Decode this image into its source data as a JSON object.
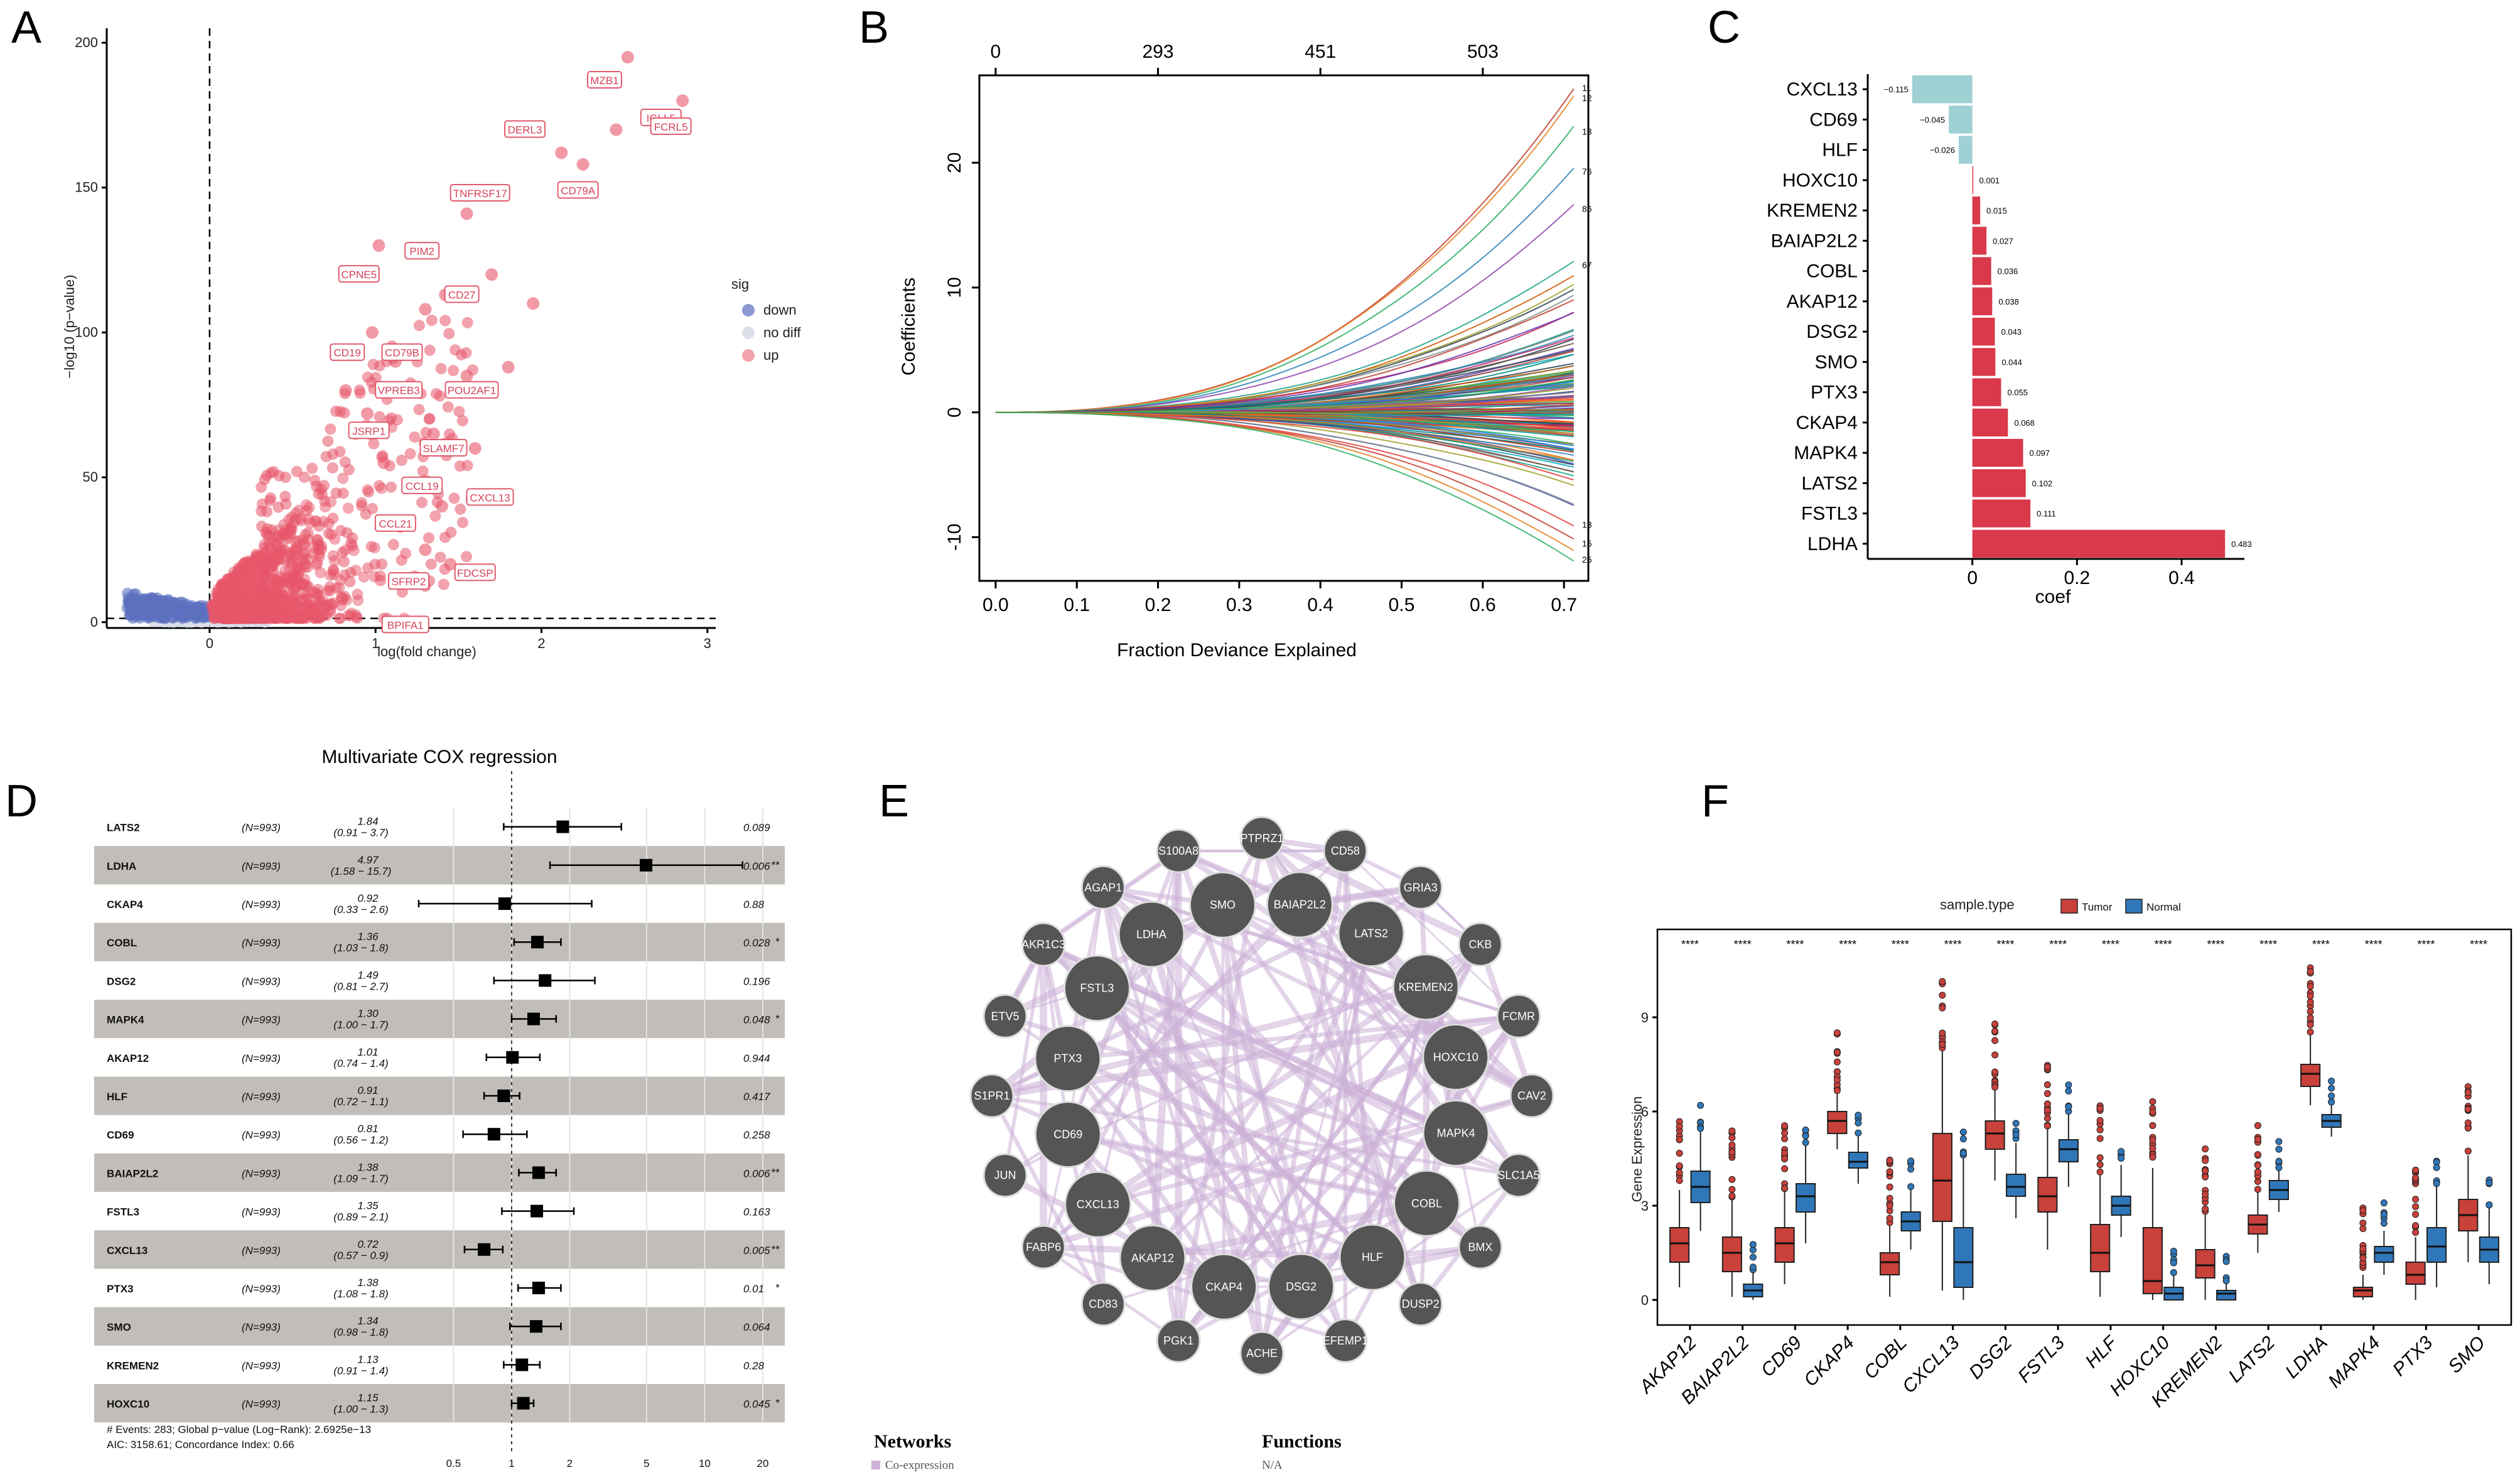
{
  "panels": {
    "A": "A",
    "B": "B",
    "C": "C",
    "D": "D",
    "E": "E",
    "F": "F"
  },
  "colors": {
    "down": "#5b6fbf",
    "nodiff": "#d8dde8",
    "up": "#e8566a",
    "coef_neg": "#9fd0d4",
    "coef_pos": "#d9394a",
    "tumor": "#c8413a",
    "normal": "#2f77b8",
    "net_edge": "#cdb2d8",
    "node_fill": "#555555"
  },
  "chart_data": [
    {
      "panel": "A",
      "type": "scatter",
      "title": "",
      "xlabel": "log(fold change)",
      "ylabel": "−log10 (p−value)",
      "xlim": [
        -0.62,
        3.05
      ],
      "ylim": [
        -2,
        205
      ],
      "xticks": [
        0,
        1,
        2,
        3
      ],
      "yticks": [
        0,
        50,
        100,
        150,
        200
      ],
      "legend": {
        "title": "sig",
        "items": [
          {
            "label": "down",
            "color": "#5b6fbf"
          },
          {
            "label": "no diff",
            "color": "#d8dde8"
          },
          {
            "label": "up",
            "color": "#e8566a"
          }
        ]
      },
      "highlight_points": [
        [
          2.52,
          195
        ],
        [
          2.85,
          180
        ],
        [
          2.78,
          175
        ],
        [
          2.45,
          170
        ],
        [
          2.25,
          158
        ],
        [
          1.55,
          141
        ],
        [
          2.12,
          162
        ],
        [
          1.02,
          130
        ],
        [
          1.42,
          113
        ],
        [
          0.98,
          100
        ],
        [
          1.3,
          108
        ],
        [
          1.95,
          110
        ],
        [
          1.12,
          90
        ],
        [
          1.7,
          120
        ],
        [
          0.82,
          80
        ],
        [
          1.55,
          85
        ],
        [
          0.95,
          72
        ],
        [
          1.35,
          65
        ],
        [
          1.05,
          55
        ],
        [
          1.4,
          40
        ],
        [
          1.15,
          33
        ],
        [
          1.45,
          20
        ],
        [
          0.8,
          8
        ],
        [
          1.3,
          25
        ],
        [
          1.8,
          88
        ],
        [
          1.6,
          60
        ]
      ],
      "labels": [
        {
          "text": "MZB1",
          "x": 2.38,
          "y": 187
        },
        {
          "text": "IGLL5",
          "x": 2.72,
          "y": 174
        },
        {
          "text": "FCRL5",
          "x": 2.78,
          "y": 171
        },
        {
          "text": "DERL3",
          "x": 1.9,
          "y": 170
        },
        {
          "text": "CD79A",
          "x": 2.22,
          "y": 149
        },
        {
          "text": "TNFRSF17",
          "x": 1.63,
          "y": 148
        },
        {
          "text": "PIM2",
          "x": 1.28,
          "y": 128
        },
        {
          "text": "CPNE5",
          "x": 0.9,
          "y": 120
        },
        {
          "text": "CD27",
          "x": 1.52,
          "y": 113
        },
        {
          "text": "CD19",
          "x": 0.83,
          "y": 93
        },
        {
          "text": "CD79B",
          "x": 1.16,
          "y": 93
        },
        {
          "text": "VPREB3",
          "x": 1.14,
          "y": 80
        },
        {
          "text": "POU2AF1",
          "x": 1.58,
          "y": 80
        },
        {
          "text": "JSRP1",
          "x": 0.96,
          "y": 66
        },
        {
          "text": "SLAMF7",
          "x": 1.41,
          "y": 60
        },
        {
          "text": "CCL19",
          "x": 1.28,
          "y": 47
        },
        {
          "text": "CXCL13",
          "x": 1.69,
          "y": 43
        },
        {
          "text": "CCL21",
          "x": 1.12,
          "y": 34
        },
        {
          "text": "FDCSP",
          "x": 1.6,
          "y": 17
        },
        {
          "text": "SFRP2",
          "x": 1.2,
          "y": 14
        },
        {
          "text": "BPIFA1",
          "x": 1.18,
          "y": -1
        }
      ]
    },
    {
      "panel": "B",
      "type": "line",
      "title": "",
      "xlabel": "Fraction Deviance Explained",
      "ylabel": "Coefficients",
      "xlim": [
        -0.02,
        0.73
      ],
      "ylim": [
        -13.5,
        27
      ],
      "xticks": [
        0.0,
        0.1,
        0.2,
        0.3,
        0.4,
        0.5,
        0.6,
        0.7
      ],
      "xtick_labels": [
        "0.0",
        "0.1",
        "0.2",
        "0.3",
        "0.4",
        "0.5",
        "0.6",
        "0.7"
      ],
      "yticks": [
        -10,
        0,
        10,
        20
      ],
      "top_axis_values": [
        0,
        0.2,
        0.4,
        0.6
      ],
      "top_axis_labels": [
        "0",
        "293",
        "451",
        "503"
      ],
      "series_end_values": [
        26,
        25.5,
        23,
        19.5,
        16.5,
        12,
        11,
        10,
        9.5,
        8,
        6.5,
        5,
        3,
        1,
        -1,
        -3,
        -4.5,
        -6,
        -7.5,
        -9,
        -10,
        -11,
        -12
      ],
      "right_labels": [
        "11",
        "12",
        "13",
        "76",
        "86",
        "67",
        "13",
        "15",
        "25"
      ]
    },
    {
      "panel": "C",
      "type": "bar",
      "orientation": "horizontal",
      "xlabel": "coef",
      "xlim": [
        -0.2,
        0.52
      ],
      "xticks": [
        0,
        0.2,
        0.4
      ],
      "xtick_labels": [
        "0",
        "0.2",
        "0.4"
      ],
      "categories": [
        "CXCL13",
        "CD69",
        "HLF",
        "HOXC10",
        "KREMEN2",
        "BAIAP2L2",
        "COBL",
        "AKAP12",
        "DSG2",
        "SMO",
        "PTX3",
        "CKAP4",
        "MAPK4",
        "LATS2",
        "FSTL3",
        "LDHA"
      ],
      "values": [
        -0.115,
        -0.045,
        -0.026,
        0.001,
        0.015,
        0.027,
        0.036,
        0.038,
        0.043,
        0.044,
        0.055,
        0.068,
        0.097,
        0.102,
        0.111,
        0.483
      ],
      "value_labels": [
        "−0.115",
        "−0.045",
        "−0.026",
        "0.001",
        "0.015",
        "0.027",
        "0.036",
        "0.038",
        "0.043",
        "0.044",
        "0.055",
        "0.068",
        "0.097",
        "0.102",
        "0.111",
        "0.483"
      ]
    },
    {
      "panel": "D",
      "type": "forest",
      "title": "Multivariate COX regression",
      "xscale": "log",
      "xlim": [
        0.28,
        26
      ],
      "xticks": [
        0.5,
        1,
        2,
        5,
        10,
        20
      ],
      "xtick_labels": [
        "0.5",
        "1",
        "2",
        "5",
        "10",
        "20"
      ],
      "rows": [
        {
          "gene": "LATS2",
          "n": "(N=993)",
          "hr": 1.84,
          "lo": 0.91,
          "hi": 3.7,
          "hr_text": "1.84",
          "ci_text": "(0.91 − 3.7)",
          "p": "0.089",
          "stars": ""
        },
        {
          "gene": "LDHA",
          "n": "(N=993)",
          "hr": 4.97,
          "lo": 1.58,
          "hi": 15.7,
          "hr_text": "4.97",
          "ci_text": "(1.58 − 15.7)",
          "p": "0.006",
          "stars": "**"
        },
        {
          "gene": "CKAP4",
          "n": "(N=993)",
          "hr": 0.92,
          "lo": 0.33,
          "hi": 2.6,
          "hr_text": "0.92",
          "ci_text": "(0.33 − 2.6)",
          "p": "0.88",
          "stars": ""
        },
        {
          "gene": "COBL",
          "n": "(N=993)",
          "hr": 1.36,
          "lo": 1.03,
          "hi": 1.8,
          "hr_text": "1.36",
          "ci_text": "(1.03 − 1.8)",
          "p": "0.028",
          "stars": "*"
        },
        {
          "gene": "DSG2",
          "n": "(N=993)",
          "hr": 1.49,
          "lo": 0.81,
          "hi": 2.7,
          "hr_text": "1.49",
          "ci_text": "(0.81 − 2.7)",
          "p": "0.196",
          "stars": ""
        },
        {
          "gene": "MAPK4",
          "n": "(N=993)",
          "hr": 1.3,
          "lo": 1.0,
          "hi": 1.7,
          "hr_text": "1.30",
          "ci_text": "(1.00 − 1.7)",
          "p": "0.048",
          "stars": "*"
        },
        {
          "gene": "AKAP12",
          "n": "(N=993)",
          "hr": 1.01,
          "lo": 0.74,
          "hi": 1.4,
          "hr_text": "1.01",
          "ci_text": "(0.74 − 1.4)",
          "p": "0.944",
          "stars": ""
        },
        {
          "gene": "HLF",
          "n": "(N=993)",
          "hr": 0.91,
          "lo": 0.72,
          "hi": 1.1,
          "hr_text": "0.91",
          "ci_text": "(0.72 − 1.1)",
          "p": "0.417",
          "stars": ""
        },
        {
          "gene": "CD69",
          "n": "(N=993)",
          "hr": 0.81,
          "lo": 0.56,
          "hi": 1.2,
          "hr_text": "0.81",
          "ci_text": "(0.56 − 1.2)",
          "p": "0.258",
          "stars": ""
        },
        {
          "gene": "BAIAP2L2",
          "n": "(N=993)",
          "hr": 1.38,
          "lo": 1.09,
          "hi": 1.7,
          "hr_text": "1.38",
          "ci_text": "(1.09 − 1.7)",
          "p": "0.006",
          "stars": "**"
        },
        {
          "gene": "FSTL3",
          "n": "(N=993)",
          "hr": 1.35,
          "lo": 0.89,
          "hi": 2.1,
          "hr_text": "1.35",
          "ci_text": "(0.89 − 2.1)",
          "p": "0.163",
          "stars": ""
        },
        {
          "gene": "CXCL13",
          "n": "(N=993)",
          "hr": 0.72,
          "lo": 0.57,
          "hi": 0.9,
          "hr_text": "0.72",
          "ci_text": "(0.57 − 0.9)",
          "p": "0.005",
          "stars": "**"
        },
        {
          "gene": "PTX3",
          "n": "(N=993)",
          "hr": 1.38,
          "lo": 1.08,
          "hi": 1.8,
          "hr_text": "1.38",
          "ci_text": "(1.08 − 1.8)",
          "p": "0.01",
          "stars": "*"
        },
        {
          "gene": "SMO",
          "n": "(N=993)",
          "hr": 1.34,
          "lo": 0.98,
          "hi": 1.8,
          "hr_text": "1.34",
          "ci_text": "(0.98 − 1.8)",
          "p": "0.064",
          "stars": ""
        },
        {
          "gene": "KREMEN2",
          "n": "(N=993)",
          "hr": 1.13,
          "lo": 0.91,
          "hi": 1.4,
          "hr_text": "1.13",
          "ci_text": "(0.91 − 1.4)",
          "p": "0.28",
          "stars": ""
        },
        {
          "gene": "HOXC10",
          "n": "(N=993)",
          "hr": 1.15,
          "lo": 1.0,
          "hi": 1.3,
          "hr_text": "1.15",
          "ci_text": "(1.00 − 1.3)",
          "p": "0.045",
          "stars": "*"
        }
      ],
      "footer_line1": "# Events: 283; Global p−value (Log−Rank): 2.6925e−13",
      "footer_line2": "AIC: 3158.61; Concordance Index: 0.66"
    },
    {
      "panel": "E",
      "type": "network",
      "inner_nodes": [
        "SMO",
        "BAIAP2L2",
        "LATS2",
        "KREMEN2",
        "HOXC10",
        "MAPK4",
        "COBL",
        "HLF",
        "DSG2",
        "CKAP4",
        "AKAP12",
        "CXCL13",
        "CD69",
        "PTX3",
        "FSTL3",
        "LDHA"
      ],
      "outer_nodes": [
        "PTPRZ1",
        "CD58",
        "GRIA3",
        "CKB",
        "FCMR",
        "CAV2",
        "SLC1A5",
        "BMX",
        "DUSP2",
        "EFEMP1",
        "ACHE",
        "PGK1",
        "CD83",
        "FABP6",
        "JUN",
        "S1PR1",
        "ETV5",
        "AKR1C3",
        "AGAP1",
        "S100A8"
      ],
      "legend_networks_title": "Networks",
      "legend_networks_item": "Co-expression",
      "legend_functions_title": "Functions",
      "legend_functions_item": "N/A"
    },
    {
      "panel": "F",
      "type": "boxplot",
      "ylabel": "Gene Expression",
      "ylim": [
        -0.8,
        11.8
      ],
      "yticks": [
        0,
        3,
        6,
        9
      ],
      "legend_title": "sample.type",
      "legend_items": [
        "Tumor",
        "Normal"
      ],
      "significance": "****",
      "genes": [
        "AKAP12",
        "BAIAP2L2",
        "CD69",
        "CKAP4",
        "COBL",
        "CXCL13",
        "DSG2",
        "FSTL3",
        "HLF",
        "HOXC10",
        "KREMEN2",
        "LATS2",
        "LDHA",
        "MAPK4",
        "PTX3",
        "SMO"
      ],
      "tumor": [
        [
          1.2,
          1.8,
          2.3,
          0.4,
          3.5
        ],
        [
          0.9,
          1.5,
          2.0,
          0.1,
          3.2
        ],
        [
          1.2,
          1.8,
          2.3,
          0.5,
          3.5
        ],
        [
          5.3,
          5.7,
          6.0,
          4.8,
          6.6
        ],
        [
          0.8,
          1.2,
          1.5,
          0.1,
          2.4
        ],
        [
          2.5,
          3.8,
          5.3,
          0.3,
          8.0
        ],
        [
          4.8,
          5.3,
          5.7,
          3.8,
          6.7
        ],
        [
          2.8,
          3.3,
          3.9,
          1.6,
          5.5
        ],
        [
          0.9,
          1.5,
          2.4,
          0.1,
          4.0
        ],
        [
          0.2,
          0.6,
          2.3,
          0.0,
          4.2
        ],
        [
          0.7,
          1.1,
          1.6,
          0.0,
          2.8
        ],
        [
          2.1,
          2.4,
          2.7,
          1.5,
          3.5
        ],
        [
          6.8,
          7.2,
          7.5,
          6.2,
          8.5
        ],
        [
          0.1,
          0.3,
          0.4,
          0.0,
          0.8
        ],
        [
          0.5,
          0.8,
          1.2,
          0.0,
          2.0
        ],
        [
          2.2,
          2.7,
          3.2,
          1.2,
          4.6
        ]
      ],
      "normal": [
        [
          3.1,
          3.6,
          4.1,
          2.2,
          5.4
        ],
        [
          0.1,
          0.3,
          0.5,
          0.0,
          0.9
        ],
        [
          2.8,
          3.3,
          3.7,
          1.8,
          5.0
        ],
        [
          4.2,
          4.4,
          4.7,
          3.7,
          5.2
        ],
        [
          2.2,
          2.5,
          2.8,
          1.6,
          3.6
        ],
        [
          0.4,
          1.2,
          2.3,
          0.0,
          4.5
        ],
        [
          3.3,
          3.6,
          4.0,
          2.6,
          5.0
        ],
        [
          4.4,
          4.8,
          5.1,
          3.6,
          6.0
        ],
        [
          2.7,
          3.0,
          3.3,
          2.0,
          4.3
        ],
        [
          0.0,
          0.2,
          0.4,
          0.0,
          0.8
        ],
        [
          0.0,
          0.2,
          0.3,
          0.0,
          0.6
        ],
        [
          3.2,
          3.5,
          3.8,
          2.8,
          4.2
        ],
        [
          5.5,
          5.7,
          5.9,
          5.2,
          6.2
        ],
        [
          1.2,
          1.5,
          1.7,
          0.8,
          2.2
        ],
        [
          1.2,
          1.7,
          2.3,
          0.4,
          3.6
        ],
        [
          1.2,
          1.6,
          2.0,
          0.5,
          3.0
        ]
      ]
    }
  ]
}
